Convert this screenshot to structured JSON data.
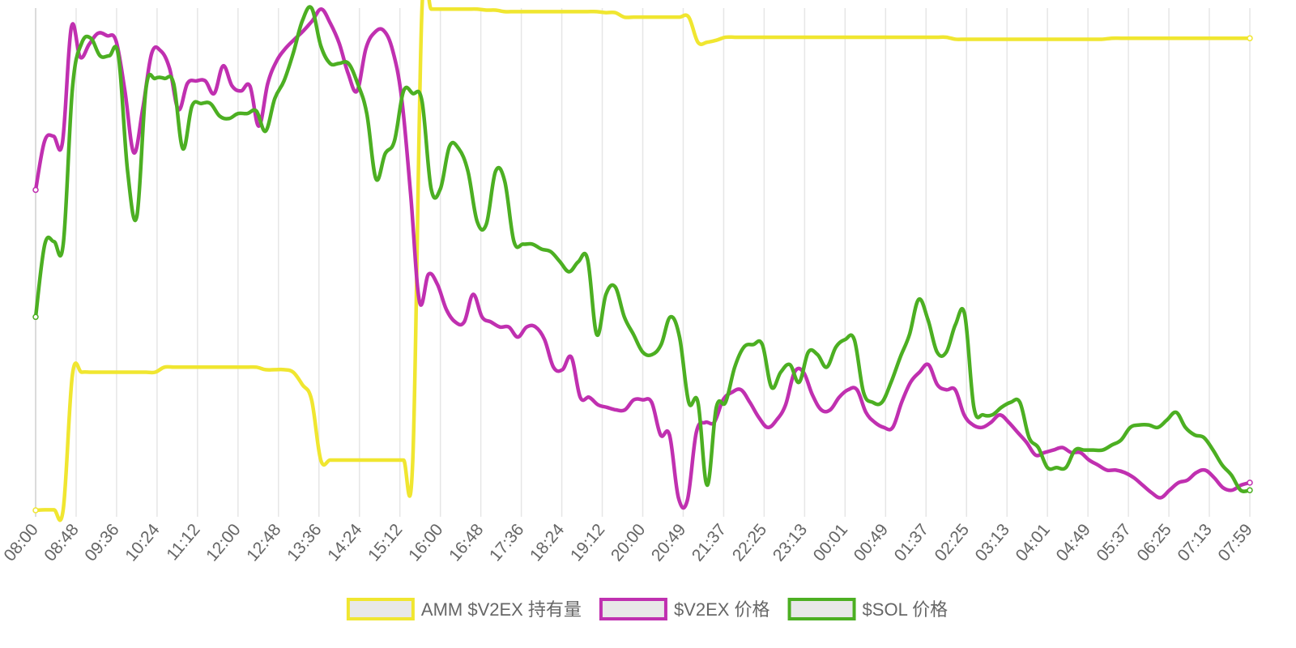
{
  "chart_data": {
    "type": "line",
    "title": "",
    "xlabel": "",
    "ylabel": "",
    "y_axis_labels_shown": false,
    "grid": "vertical",
    "legend_position": "bottom",
    "x_tick_labels": [
      "08:00",
      "08:48",
      "09:36",
      "10:24",
      "11:12",
      "12:00",
      "12:48",
      "13:36",
      "14:24",
      "15:12",
      "16:00",
      "16:48",
      "17:36",
      "18:24",
      "19:12",
      "20:00",
      "20:49",
      "21:37",
      "22:25",
      "23:13",
      "00:01",
      "00:49",
      "01:37",
      "02:25",
      "03:13",
      "04:01",
      "04:49",
      "05:37",
      "06:25",
      "07:13",
      "07:59"
    ],
    "y_scale": "normalized 0-100 (no y-axis values printed)",
    "series": [
      {
        "name": "AMM $V2EX 持有量",
        "color": "#f0e630",
        "values": [
          0,
          0.1,
          0.1,
          0.2,
          27,
          27.5,
          27.5,
          27.5,
          27.5,
          27.5,
          27.5,
          27.5,
          27.5,
          27.5,
          28.5,
          28.5,
          28.5,
          28.5,
          28.5,
          28.5,
          28.5,
          28.5,
          28.5,
          28.5,
          28.5,
          28,
          28,
          28,
          27.5,
          25,
          22,
          10,
          10,
          10,
          10,
          10,
          10,
          10,
          10,
          10,
          10,
          10,
          99.8,
          99.8,
          99.8,
          99.8,
          99.8,
          99.8,
          99.8,
          99.6,
          99.6,
          99.3,
          99.3,
          99.3,
          99.3,
          99.3,
          99.3,
          99.3,
          99.3,
          99.3,
          99.3,
          99.3,
          99.1,
          99.1,
          98.2,
          98.2,
          98.2,
          98.2,
          98.2,
          98.2,
          98.2,
          98.2,
          93.2,
          93.2,
          93.6,
          94.2,
          94.2,
          94.2,
          94.2,
          94.2,
          94.2,
          94.2,
          94.2,
          94.2,
          94.2,
          94.2,
          94.2,
          94.2,
          94.2,
          94.2,
          94.2,
          94.2,
          94.2,
          94.2,
          94.2,
          94.2,
          94.2,
          94.2,
          94.2,
          94.2,
          93.8,
          93.8,
          93.8,
          93.8,
          93.8,
          93.8,
          93.8,
          93.8,
          93.8,
          93.8,
          93.8,
          93.8,
          93.8,
          93.8,
          93.8,
          93.8,
          93.8,
          94,
          94,
          94,
          94,
          94,
          94,
          94,
          94,
          94,
          94,
          94,
          94,
          94,
          94,
          94,
          94
        ]
      },
      {
        "name": "$V2EX 价格",
        "color": "#c030b0",
        "values": [
          63.8,
          73.5,
          74.5,
          73.2,
          96.2,
          90.2,
          92.8,
          95,
          94.5,
          93.5,
          83.5,
          71.2,
          80,
          91,
          91.5,
          88,
          79.8,
          85,
          85.5,
          85.5,
          83,
          88.5,
          84.5,
          83.5,
          84.5,
          76.5,
          85,
          89.5,
          92,
          93.8,
          95.5,
          97.5,
          99.8,
          97,
          93,
          87,
          83.5,
          92,
          95.2,
          95.5,
          91.5,
          82,
          63,
          41.5,
          47,
          45,
          40,
          37.5,
          37.5,
          43,
          38.5,
          37.5,
          36.5,
          36.5,
          34.5,
          36.5,
          36.5,
          34,
          28.5,
          28,
          30.5,
          22.5,
          22.5,
          21,
          20.5,
          20,
          20,
          22,
          22,
          21.5,
          15,
          15,
          2.5,
          2,
          15.5,
          17.5,
          17.5,
          22,
          23.5,
          24,
          21.5,
          18.5,
          16.5,
          18,
          21,
          27.5,
          27.5,
          23,
          20,
          20,
          22.5,
          24,
          24,
          19.5,
          17.5,
          16.5,
          16.5,
          21.5,
          25.5,
          27.5,
          29,
          25,
          24,
          24,
          19,
          17,
          16.5,
          17.5,
          19,
          17.5,
          15.5,
          13.5,
          11,
          11.5,
          12,
          12.5,
          11.5,
          11.5,
          10,
          9,
          8,
          8,
          7.5,
          6.5,
          5,
          3.5,
          2.5,
          4,
          5.5,
          6,
          7.5,
          8,
          6.5,
          4.5,
          4,
          5,
          5.5
        ]
      },
      {
        "name": "$SOL 价格",
        "color": "#4caf22",
        "values": [
          38.5,
          53,
          53.5,
          53,
          84,
          93,
          94,
          90.5,
          90.5,
          90.5,
          67.5,
          58.5,
          84,
          86,
          86,
          85,
          72,
          80.5,
          81,
          81,
          78.5,
          78,
          79,
          79,
          79.5,
          75.5,
          82,
          85.5,
          91,
          97.5,
          100,
          92.5,
          89,
          89,
          89,
          85,
          79,
          66,
          71,
          73.5,
          83.5,
          83,
          81.5,
          64,
          64,
          72.5,
          72,
          67.5,
          57.5,
          57,
          67.5,
          65.5,
          53.5,
          53,
          53,
          52,
          51.5,
          49.5,
          47.5,
          49.5,
          50,
          35,
          43,
          44.5,
          38.5,
          35,
          31.5,
          31,
          33,
          38.5,
          34.5,
          21.5,
          21.5,
          5,
          20.5,
          21.5,
          28.5,
          32.5,
          33,
          33,
          24.5,
          27.5,
          29,
          25.5,
          31.5,
          31,
          28.5,
          32.5,
          34,
          34,
          23.5,
          21.5,
          21.5,
          25.5,
          30.5,
          35,
          42,
          38,
          31.5,
          31.5,
          37,
          39,
          20.5,
          19,
          19,
          20.5,
          21.5,
          21.5,
          14.5,
          12.5,
          8.5,
          8.5,
          8.5,
          12,
          12,
          12,
          12,
          13,
          14,
          16.5,
          17,
          17,
          16.5,
          18,
          19.5,
          16.5,
          15,
          14.5,
          12,
          9,
          7,
          4,
          4
        ]
      }
    ]
  }
}
